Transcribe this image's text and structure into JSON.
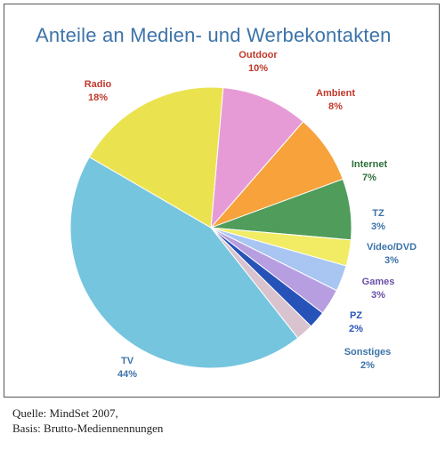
{
  "chart_data": {
    "type": "pie",
    "title": "Anteile an Medien- und Werbekontakten",
    "slices": [
      {
        "name": "Outdoor",
        "label": "10%",
        "value": 10,
        "color": "#e79bd6",
        "text_color": "#c0392b"
      },
      {
        "name": "Ambient",
        "label": "8%",
        "value": 8,
        "color": "#f7a23a",
        "text_color": "#c0392b"
      },
      {
        "name": "Internet",
        "label": "7%",
        "value": 7,
        "color": "#4f9c5b",
        "text_color": "#2f6e3b"
      },
      {
        "name": "TZ",
        "label": "3%",
        "value": 3,
        "color": "#f1ec63",
        "text_color": "#3d73a8"
      },
      {
        "name": "Video/DVD",
        "label": "3%",
        "value": 3,
        "color": "#a9c5f2",
        "text_color": "#3d73a8"
      },
      {
        "name": "Games",
        "label": "3%",
        "value": 3,
        "color": "#b79ee0",
        "text_color": "#6b4fa8"
      },
      {
        "name": "PZ",
        "label": "2%",
        "value": 2,
        "color": "#2752b8",
        "text_color": "#2752b8"
      },
      {
        "name": "Sonstiges",
        "label": "2%",
        "value": 2,
        "color": "#d8c3cf",
        "text_color": "#3d73a8"
      },
      {
        "name": "TV",
        "label": "44%",
        "value": 44,
        "color": "#75c5de",
        "text_color": "#3d73a8"
      },
      {
        "name": "Radio",
        "label": "18%",
        "value": 18,
        "color": "#ebe250",
        "text_color": "#c0392b"
      }
    ]
  },
  "caption": {
    "line1": "Quelle: MindSet 2007,",
    "line2": "Basis: Brutto-Mediennennungen"
  }
}
